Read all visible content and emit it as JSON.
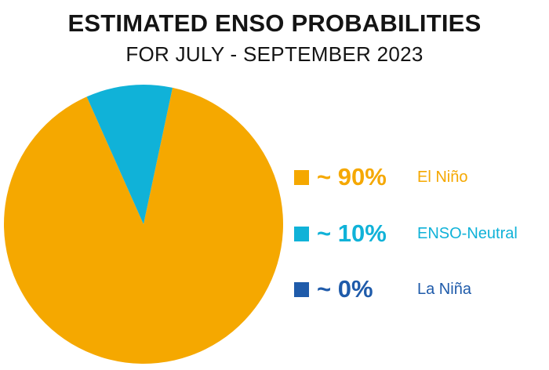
{
  "chart_data": {
    "type": "pie",
    "title": "ESTIMATED ENSO PROBABILITIES",
    "subtitle": "FOR JULY - SEPTEMBER 2023",
    "slices": [
      {
        "label": "El Niño",
        "value": 90,
        "display": "~ 90%",
        "color": "#F5A800"
      },
      {
        "label": "ENSO-Neutral",
        "value": 10,
        "display": "~ 10%",
        "color": "#10B2D8"
      },
      {
        "label": "La Niña",
        "value": 0,
        "display": "~ 0%",
        "color": "#1F5BAA"
      }
    ],
    "legend_position": "right"
  }
}
